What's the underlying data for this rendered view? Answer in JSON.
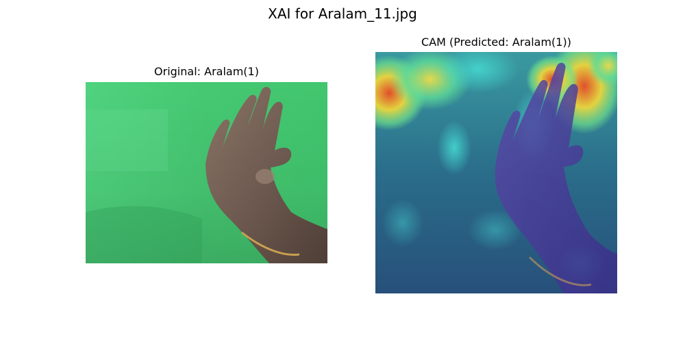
{
  "figure": {
    "title": "XAI for Aralam_11.jpg"
  },
  "panels": [
    {
      "title": "Original: Aralam(1)",
      "image": "photo of a hand showing the Aralam mudra against a green screen, with a gold bracelet on the wrist"
    },
    {
      "title": "CAM (Predicted: Aralam(1))",
      "image": "class activation map overlay on the hand photo; jet colormap, warm activations near the top edge and the index fingertip"
    }
  ]
}
